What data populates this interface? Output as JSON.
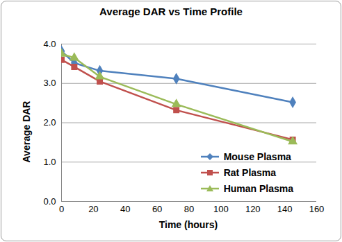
{
  "chart_data": {
    "type": "line",
    "title": "Average DAR vs Time Profile",
    "x_label": "Time (hours)",
    "y_label": "Average DAR",
    "x": [
      0,
      8,
      24,
      72,
      145
    ],
    "series": [
      {
        "name": "Mouse Plasma",
        "color": "#4f81bd",
        "marker": "diamond",
        "values": [
          3.82,
          3.52,
          3.32,
          3.12,
          2.52
        ]
      },
      {
        "name": "Rat Plasma",
        "color": "#c0504d",
        "marker": "square",
        "values": [
          3.6,
          3.42,
          3.05,
          2.32,
          1.57
        ]
      },
      {
        "name": "Human Plasma",
        "color": "#9bbb59",
        "marker": "triangle",
        "values": [
          3.75,
          3.65,
          3.17,
          2.47,
          1.52
        ]
      }
    ],
    "xlim": [
      0,
      160
    ],
    "xticks": [
      0,
      20,
      40,
      60,
      80,
      100,
      120,
      140,
      160
    ],
    "ylim": [
      0,
      4
    ],
    "yticks": [
      {
        "value": 0,
        "label": "0.0"
      },
      {
        "value": 1,
        "label": "1.0"
      },
      {
        "value": 2,
        "label": "2.0"
      },
      {
        "value": 3,
        "label": "3.0"
      },
      {
        "value": 4,
        "label": "4.0"
      }
    ],
    "grid": true,
    "legend": "lower right"
  }
}
